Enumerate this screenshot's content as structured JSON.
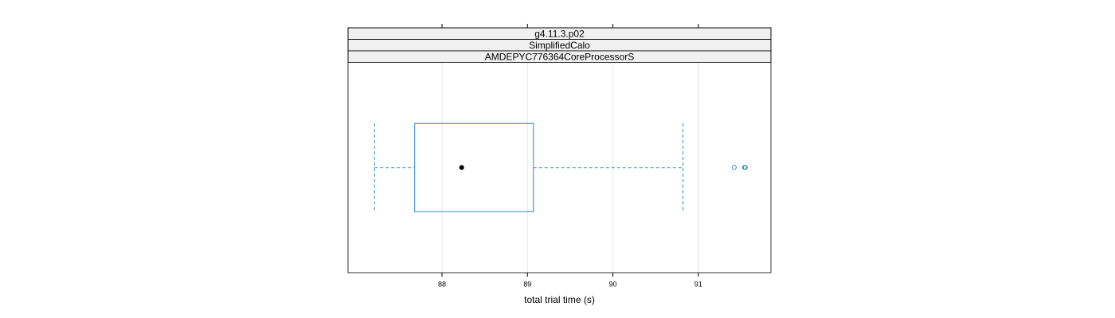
{
  "chart_data": {
    "type": "boxplot",
    "strips": [
      "g4.11.3.p02",
      "SimplifiedCalo",
      "AMDEPYC776364CoreProcessorS"
    ],
    "x_label": "total trial time (s)",
    "whisker_low": 87.21,
    "q1": 87.68,
    "median": 88.23,
    "q3": 89.07,
    "whisker_high": 90.82,
    "outliers": [
      91.42,
      91.54,
      91.55
    ],
    "color": "#2e8bc0",
    "median_color": "#000000",
    "xlim": [
      86.9,
      91.85
    ],
    "xticks": [
      88,
      89,
      90,
      91
    ],
    "grid": true
  }
}
